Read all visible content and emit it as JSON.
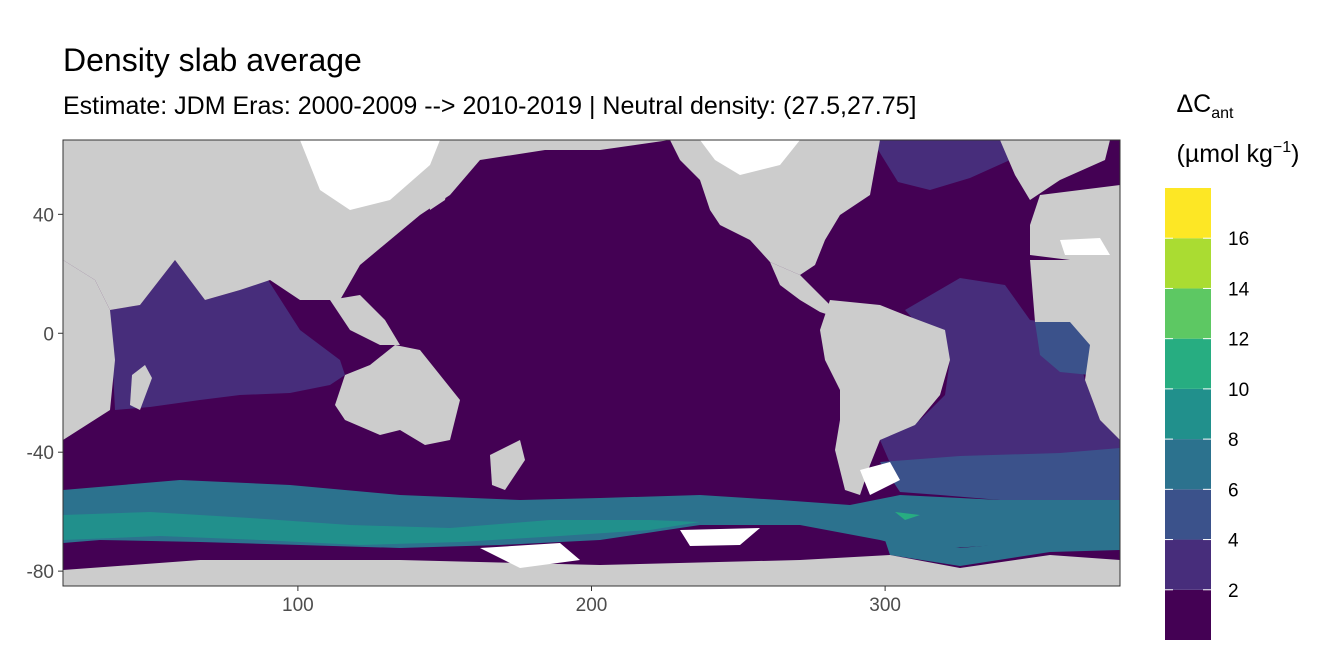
{
  "title": "Density slab average",
  "subtitle": "Estimate: JDM Eras: 2000-2009 --> 2010-2019 | Neutral density: (27.5,27.75]",
  "chart_data": {
    "type": "heatmap",
    "title": "Density slab average",
    "subtitle": "Estimate: JDM Eras: 2000-2009 --> 2010-2019 | Neutral density: (27.5,27.75]",
    "xlim": [
      20,
      380
    ],
    "ylim": [
      -85,
      65
    ],
    "x_ticks": [
      100,
      200,
      300
    ],
    "y_ticks": [
      40,
      0,
      -40,
      -80
    ],
    "legend": {
      "title_main": "ΔC",
      "title_sub": "ant",
      "unit_prefix": "(µmol kg",
      "unit_sup": "−1",
      "unit_suffix": ")",
      "labels": [
        "16",
        "14",
        "12",
        "10",
        "8",
        "6",
        "4",
        "2"
      ],
      "bins": [
        {
          "range": [
            0,
            2
          ],
          "color": "#440154"
        },
        {
          "range": [
            2,
            4
          ],
          "color": "#472D7B"
        },
        {
          "range": [
            4,
            6
          ],
          "color": "#3B528B"
        },
        {
          "range": [
            6,
            8
          ],
          "color": "#2C728E"
        },
        {
          "range": [
            8,
            10
          ],
          "color": "#21908C"
        },
        {
          "range": [
            10,
            12
          ],
          "color": "#27AD81"
        },
        {
          "range": [
            12,
            14
          ],
          "color": "#5DC863"
        },
        {
          "range": [
            14,
            16
          ],
          "color": "#AADC32"
        },
        {
          "range": [
            16,
            18
          ],
          "color": "#FDE725"
        }
      ]
    },
    "land_color": "#CCCCCC",
    "nodata_color": "#FFFFFF"
  }
}
